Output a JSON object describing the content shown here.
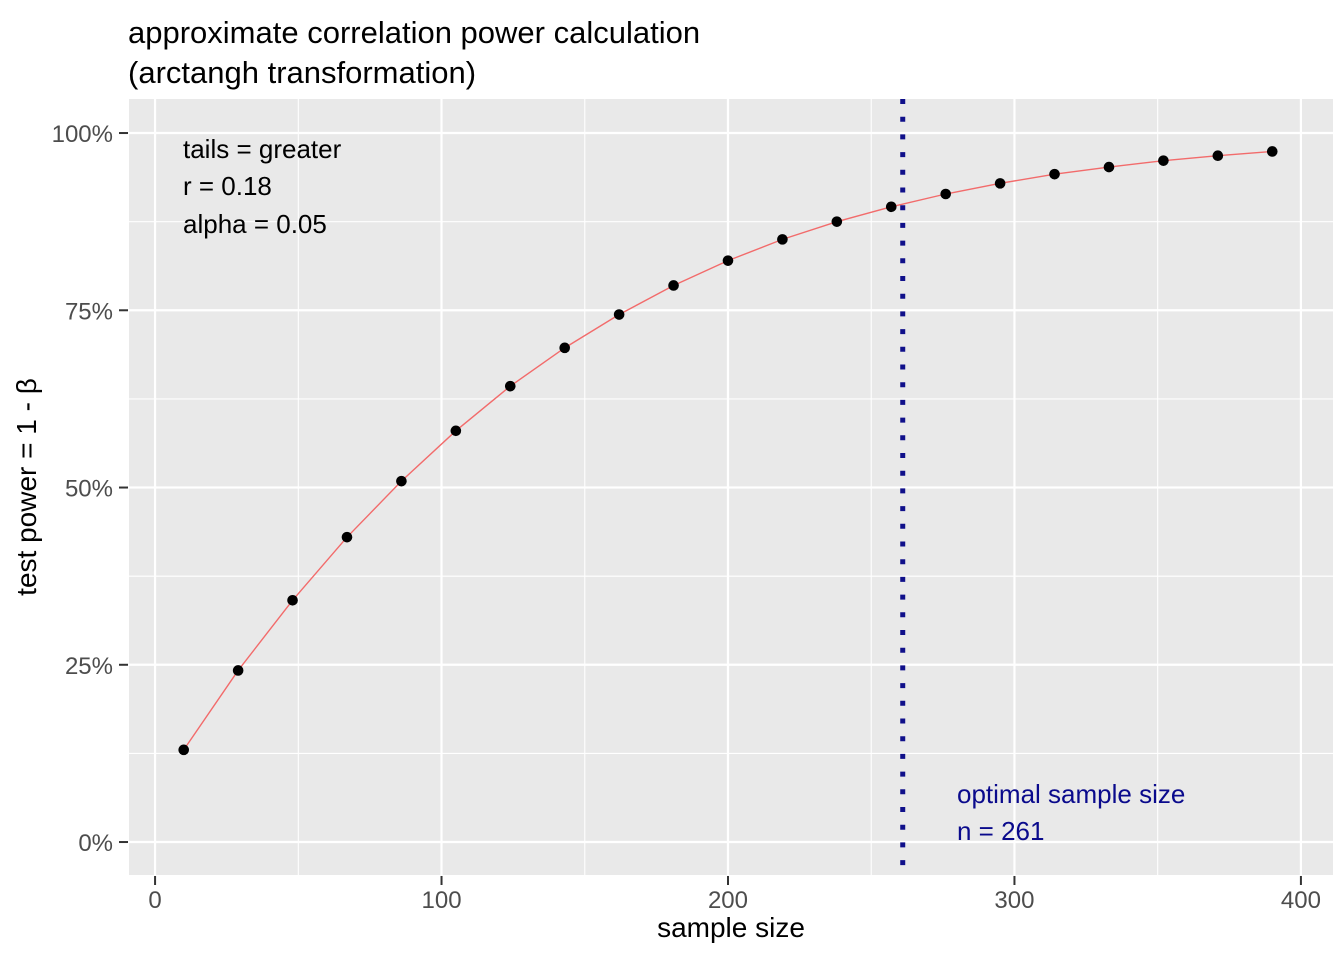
{
  "title": {
    "line1": "approximate correlation power calculation",
    "line2": "(arctangh transformation)"
  },
  "axes": {
    "x": {
      "label": "sample size",
      "ticks": [
        0,
        100,
        200,
        300,
        400
      ],
      "tick_labels": [
        "0",
        "100",
        "200",
        "300",
        "400"
      ]
    },
    "y": {
      "label": "test power = 1 - β",
      "ticks": [
        0,
        25,
        50,
        75,
        100
      ],
      "tick_labels": [
        "0%",
        "25%",
        "50%",
        "75%",
        "100%"
      ]
    }
  },
  "annotations": {
    "parameters": [
      "tails = greater",
      "r = 0.18",
      "alpha = 0.05"
    ],
    "optimal": {
      "label": "optimal sample size",
      "value_label": "n = 261",
      "n": 261
    }
  },
  "chart_data": {
    "type": "line",
    "title": "approximate correlation power calculation (arctangh transformation)",
    "xlabel": "sample size",
    "ylabel": "test power = 1 - β",
    "x": [
      10,
      29,
      48,
      67,
      86,
      105,
      124,
      143,
      162,
      181,
      200,
      219,
      238,
      257,
      276,
      295,
      314,
      333,
      352,
      371,
      390
    ],
    "series": [
      {
        "name": "test power (%)",
        "values": [
          13.0,
          24.2,
          34.1,
          43.0,
          50.9,
          58.0,
          64.3,
          69.7,
          74.4,
          78.5,
          82.0,
          85.0,
          87.5,
          89.6,
          91.4,
          92.9,
          94.2,
          95.2,
          96.1,
          96.8,
          97.4
        ]
      }
    ],
    "xlim": [
      -9.1,
      411.2
    ],
    "ylim": [
      -4.65,
      104.8
    ],
    "x_minor_ticks": [
      50,
      150,
      250,
      350
    ],
    "y_minor_ticks": [
      12.5,
      37.5,
      62.5,
      87.5
    ],
    "vline_x": 261,
    "grid": true,
    "legend": false,
    "marker": "point"
  },
  "colors": {
    "background": "#FFFFFF",
    "panel_background": "#E9E9E9",
    "gridline": "#FFFFFF",
    "curve_line": "#F26B6B",
    "point": "#000000",
    "optimal_line": "#10108A",
    "optimal_text": "#0A0A8C",
    "tick_label": "#4D4D4D",
    "tick_mark": "#333333",
    "text": "#000000"
  }
}
